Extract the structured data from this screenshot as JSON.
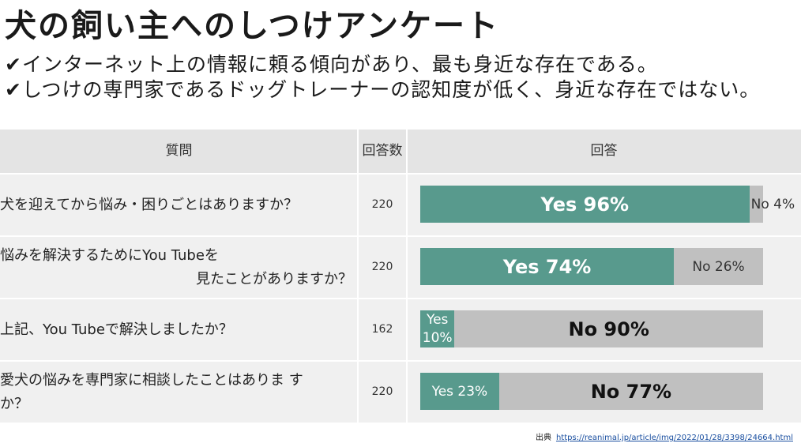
{
  "title": "犬の飼い主へのしつけアンケート",
  "bullets": [
    "✔インターネット上の情報に頼る傾向があり、最も身近な存在である。",
    "✔しつけの専門家であるドッグトレーナーの認知度が低く、身近な存在ではない。"
  ],
  "table": {
    "headers": {
      "question": "質問",
      "count": "回答数",
      "answer": "回答"
    }
  },
  "colors": {
    "yes": "#589a8d",
    "no": "#c0c0c0",
    "header_bg": "#e4e4e4",
    "row_bg": "#f0f0f0"
  },
  "chart_data": {
    "type": "bar",
    "stacked": true,
    "orientation": "horizontal",
    "categories": [
      "犬を迎えてから悩み・困りごとはありますか？",
      "悩みを解決するためにYou Tubeを見たことがありますか？",
      "上記、You Tubeで解決しましたか？",
      "愛犬の悩みを専門家に相談したことはありますか？"
    ],
    "category_lines": [
      [
        "犬を迎えてから悩み・困りごとはありますか？"
      ],
      [
        "悩みを解決するためにYou Tubeを",
        "見たことがありますか？"
      ],
      [
        "上記、You Tubeで解決しましたか？"
      ],
      [
        "愛犬の悩みを専門家に相談したことはありま す",
        "か？"
      ]
    ],
    "counts": [
      220,
      220,
      162,
      220
    ],
    "series": [
      {
        "name": "Yes",
        "values": [
          96,
          74,
          10,
          23
        ]
      },
      {
        "name": "No",
        "values": [
          4,
          26,
          90,
          77
        ]
      }
    ],
    "labels": [
      {
        "yes": "Yes 96%",
        "no": "No 4%"
      },
      {
        "yes": "Yes 74%",
        "no": "No 26%"
      },
      {
        "yes": [
          "Yes",
          "10%"
        ],
        "no": "No 90%"
      },
      {
        "yes": "Yes 23%",
        "no": "No 77%"
      }
    ],
    "xlim": [
      0,
      100
    ]
  },
  "source": {
    "label": "出典",
    "url": "https://reanimal.jp/article/img/2022/01/28/3398/24664.html"
  }
}
